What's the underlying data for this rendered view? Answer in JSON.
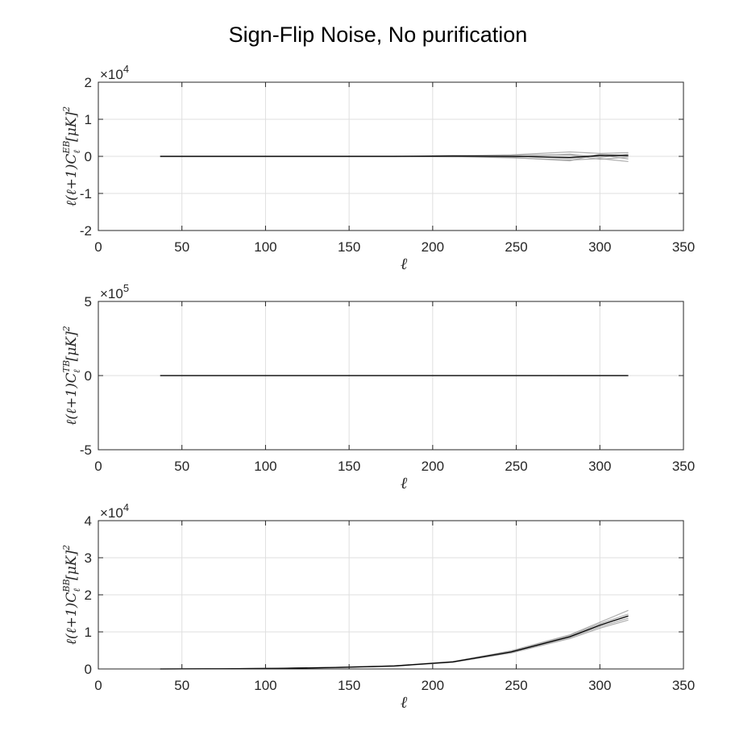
{
  "figure": {
    "title": "Sign-Flip Noise, No purification"
  },
  "chart_data": [
    {
      "type": "line",
      "xlabel": "ℓ",
      "ylabel": "ℓ(ℓ+1)C",
      "ylabel_sup": "EB",
      "ylabel_sub": "ℓ",
      "ylabel_tail": "[μK]",
      "ylabel_pow": "2",
      "xlim": [
        0,
        350
      ],
      "ylim": [
        -20000,
        20000
      ],
      "x_ticks": [
        0,
        50,
        100,
        150,
        200,
        250,
        300,
        350
      ],
      "y_ticks": [
        -20000,
        -10000,
        0,
        10000,
        20000
      ],
      "y_tick_labels": [
        "-2",
        "-1",
        "0",
        "1",
        "2"
      ],
      "y_multiplier_base": "×10",
      "y_multiplier_exp": "4",
      "grid": true,
      "mean_color": "#000000",
      "realization_color": "#a0a0a0",
      "x": [
        37,
        72,
        107,
        142,
        177,
        212,
        247,
        282,
        300,
        317
      ],
      "mean": [
        0,
        0,
        0,
        0,
        0,
        100,
        0,
        -300,
        200,
        200
      ],
      "realizations": [
        [
          0,
          0,
          0,
          0,
          0,
          200,
          400,
          1200,
          800,
          1000
        ],
        [
          0,
          0,
          0,
          0,
          0,
          -100,
          -400,
          -1000,
          -600,
          -1400
        ],
        [
          0,
          0,
          0,
          0,
          0,
          150,
          -200,
          600,
          -300,
          600
        ],
        [
          0,
          0,
          0,
          0,
          0,
          -150,
          200,
          -600,
          400,
          -700
        ],
        [
          0,
          0,
          0,
          0,
          0,
          100,
          -300,
          -1200,
          600,
          300
        ],
        [
          0,
          0,
          0,
          0,
          0,
          -50,
          300,
          400,
          -800,
          -200
        ]
      ]
    },
    {
      "type": "line",
      "xlabel": "ℓ",
      "ylabel": "ℓ(ℓ+1)C",
      "ylabel_sup": "TB",
      "ylabel_sub": "ℓ",
      "ylabel_tail": "[μK]",
      "ylabel_pow": "2",
      "xlim": [
        0,
        350
      ],
      "ylim": [
        -500000,
        500000
      ],
      "x_ticks": [
        0,
        50,
        100,
        150,
        200,
        250,
        300,
        350
      ],
      "y_ticks": [
        -500000,
        0,
        500000
      ],
      "y_tick_labels": [
        "-5",
        "0",
        "5"
      ],
      "y_multiplier_base": "×10",
      "y_multiplier_exp": "5",
      "grid": true,
      "mean_color": "#000000",
      "realization_color": "#a0a0a0",
      "x": [
        37,
        72,
        107,
        142,
        177,
        212,
        247,
        282,
        300,
        317
      ],
      "mean": [
        0,
        0,
        0,
        0,
        0,
        0,
        0,
        0,
        0,
        0
      ],
      "realizations": [
        [
          0,
          0,
          0,
          0,
          0,
          0,
          0,
          800,
          1000,
          600
        ],
        [
          0,
          0,
          0,
          0,
          0,
          0,
          0,
          -800,
          -900,
          -700
        ]
      ]
    },
    {
      "type": "line",
      "xlabel": "ℓ",
      "ylabel": "ℓ(ℓ+1)C",
      "ylabel_sup": "BB",
      "ylabel_sub": "ℓ",
      "ylabel_tail": "[μK]",
      "ylabel_pow": "2",
      "xlim": [
        0,
        350
      ],
      "ylim": [
        0,
        40000
      ],
      "x_ticks": [
        0,
        50,
        100,
        150,
        200,
        250,
        300,
        350
      ],
      "y_ticks": [
        0,
        10000,
        20000,
        30000,
        40000
      ],
      "y_tick_labels": [
        "0",
        "1",
        "2",
        "3",
        "4"
      ],
      "y_multiplier_base": "×10",
      "y_multiplier_exp": "4",
      "grid": true,
      "mean_color": "#000000",
      "realization_color": "#a0a0a0",
      "x": [
        37,
        72,
        107,
        142,
        177,
        212,
        247,
        282,
        300,
        317
      ],
      "mean": [
        0,
        50,
        150,
        400,
        800,
        1900,
        4600,
        8700,
        11800,
        14300
      ],
      "realizations": [
        [
          0,
          50,
          150,
          450,
          850,
          2000,
          4900,
          9200,
          12600,
          15800
        ],
        [
          0,
          50,
          150,
          350,
          750,
          1800,
          4300,
          8200,
          11000,
          13200
        ],
        [
          0,
          50,
          150,
          420,
          820,
          1950,
          4700,
          9000,
          12200,
          14800
        ],
        [
          0,
          50,
          150,
          380,
          780,
          1850,
          4500,
          8500,
          11400,
          13700
        ]
      ]
    }
  ]
}
